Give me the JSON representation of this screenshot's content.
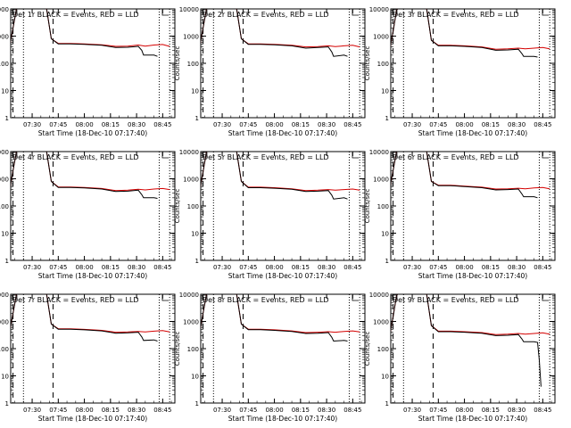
{
  "chart_data": [
    {
      "panel_title": "Det 1r BLACK = Events, RED = LLD",
      "type": "line",
      "ylog": true,
      "ylim": [
        1,
        10000
      ],
      "ylabel": "Counts/sec",
      "xlabel": "Start Time (18-Dec-10 07:17:40)",
      "x_tick_labels": [
        "07:30",
        "07:45",
        "08:00",
        "08:15",
        "08:30",
        "08:45"
      ],
      "y_tick_labels": [
        "1",
        "10",
        "100",
        "1000",
        "10000"
      ],
      "series": [
        {
          "name": "Events",
          "color": "#000000",
          "x": [
            "07:17",
            "07:19",
            "07:21",
            "07:23",
            "07:25",
            "07:38",
            "07:41",
            "07:45",
            "07:52",
            "08:00",
            "08:10",
            "08:18",
            "08:25",
            "08:31",
            "08:33",
            "08:34",
            "08:40",
            "08:42"
          ],
          "values": [
            400,
            2000,
            10000,
            13000,
            13000,
            13000,
            800,
            520,
            520,
            500,
            460,
            380,
            390,
            420,
            300,
            200,
            200,
            180
          ]
        },
        {
          "name": "LLD",
          "color": "#d40000",
          "x": [
            "07:17",
            "07:19",
            "07:21",
            "07:23",
            "07:25",
            "07:38",
            "07:41",
            "07:45",
            "07:52",
            "08:00",
            "08:10",
            "08:18",
            "08:25",
            "08:31",
            "08:35",
            "08:40",
            "08:45",
            "08:49"
          ],
          "values": [
            400,
            2000,
            10000,
            13000,
            13000,
            13000,
            800,
            540,
            540,
            520,
            480,
            420,
            430,
            470,
            430,
            470,
            490,
            420
          ]
        }
      ]
    },
    {
      "panel_title": "Det 2r BLACK = Events, RED = LLD",
      "type": "line",
      "ylog": true,
      "ylim": [
        1,
        10000
      ],
      "ylabel": "Counts/sec",
      "xlabel": "Start Time (18-Dec-10 07:17:40)",
      "x_tick_labels": [
        "07:30",
        "07:45",
        "08:00",
        "08:15",
        "08:30",
        "08:45"
      ],
      "y_tick_labels": [
        "1",
        "10",
        "100",
        "1000",
        "10000"
      ],
      "series": [
        {
          "name": "Events",
          "color": "#000000",
          "x": [
            "07:17",
            "07:19",
            "07:21",
            "07:23",
            "07:25",
            "07:38",
            "07:41",
            "07:45",
            "07:52",
            "08:00",
            "08:10",
            "08:18",
            "08:25",
            "08:31",
            "08:33",
            "08:34",
            "08:40",
            "08:42"
          ],
          "values": [
            380,
            2000,
            10000,
            13000,
            13000,
            13000,
            800,
            500,
            500,
            480,
            440,
            360,
            380,
            400,
            260,
            180,
            200,
            180
          ]
        },
        {
          "name": "LLD",
          "color": "#d40000",
          "x": [
            "07:17",
            "07:19",
            "07:21",
            "07:23",
            "07:25",
            "07:38",
            "07:41",
            "07:45",
            "07:52",
            "08:00",
            "08:10",
            "08:18",
            "08:25",
            "08:31",
            "08:35",
            "08:40",
            "08:45",
            "08:49"
          ],
          "values": [
            380,
            2000,
            10000,
            13000,
            13000,
            13000,
            800,
            520,
            520,
            500,
            460,
            400,
            410,
            440,
            410,
            440,
            460,
            400
          ]
        }
      ]
    },
    {
      "panel_title": "Det 3r BLACK = Events, RED = LLD",
      "type": "line",
      "ylog": true,
      "ylim": [
        1,
        10000
      ],
      "ylabel": "Counts/sec",
      "xlabel": "Start Time (18-Dec-10 07:17:40)",
      "x_tick_labels": [
        "07:30",
        "07:45",
        "08:00",
        "08:15",
        "08:30",
        "08:45"
      ],
      "y_tick_labels": [
        "1",
        "10",
        "100",
        "1000",
        "10000"
      ],
      "series": [
        {
          "name": "Events",
          "color": "#000000",
          "x": [
            "07:17",
            "07:19",
            "07:21",
            "07:23",
            "07:25",
            "07:38",
            "07:41",
            "07:45",
            "07:52",
            "08:00",
            "08:10",
            "08:18",
            "08:25",
            "08:31",
            "08:33",
            "08:34",
            "08:40",
            "08:42"
          ],
          "values": [
            300,
            1500,
            9000,
            13000,
            13000,
            13000,
            700,
            440,
            440,
            420,
            380,
            300,
            310,
            330,
            230,
            180,
            180,
            170
          ]
        },
        {
          "name": "LLD",
          "color": "#d40000",
          "x": [
            "07:17",
            "07:19",
            "07:21",
            "07:23",
            "07:25",
            "07:38",
            "07:41",
            "07:45",
            "07:52",
            "08:00",
            "08:10",
            "08:18",
            "08:25",
            "08:31",
            "08:35",
            "08:40",
            "08:45",
            "08:49"
          ],
          "values": [
            300,
            1500,
            9000,
            13000,
            13000,
            13000,
            700,
            460,
            460,
            440,
            400,
            330,
            340,
            360,
            340,
            360,
            380,
            340
          ]
        }
      ]
    },
    {
      "panel_title": "Det 4r BLACK = Events, RED = LLD",
      "type": "line",
      "ylog": true,
      "ylim": [
        1,
        10000
      ],
      "ylabel": "Counts/sec",
      "xlabel": "Start Time (18-Dec-10 07:17:40)",
      "x_tick_labels": [
        "07:30",
        "07:45",
        "08:00",
        "08:15",
        "08:30",
        "08:45"
      ],
      "y_tick_labels": [
        "1",
        "10",
        "100",
        "1000",
        "10000"
      ],
      "series": [
        {
          "name": "Events",
          "color": "#000000",
          "x": [
            "07:17",
            "07:19",
            "07:21",
            "07:23",
            "07:25",
            "07:38",
            "07:41",
            "07:45",
            "07:52",
            "08:00",
            "08:10",
            "08:18",
            "08:25",
            "08:31",
            "08:33",
            "08:34",
            "08:40",
            "08:42"
          ],
          "values": [
            380,
            2000,
            10000,
            13000,
            13000,
            13000,
            800,
            480,
            480,
            460,
            420,
            340,
            350,
            380,
            260,
            200,
            200,
            190
          ]
        },
        {
          "name": "LLD",
          "color": "#d40000",
          "x": [
            "07:17",
            "07:19",
            "07:21",
            "07:23",
            "07:25",
            "07:38",
            "07:41",
            "07:45",
            "07:52",
            "08:00",
            "08:10",
            "08:18",
            "08:25",
            "08:31",
            "08:35",
            "08:40",
            "08:45",
            "08:49"
          ],
          "values": [
            380,
            2000,
            10000,
            13000,
            13000,
            13000,
            800,
            500,
            500,
            480,
            440,
            370,
            380,
            410,
            390,
            420,
            440,
            400
          ]
        }
      ]
    },
    {
      "panel_title": "Det 5r BLACK = Events, RED = LLD",
      "type": "line",
      "ylog": true,
      "ylim": [
        1,
        10000
      ],
      "ylabel": "Counts/sec",
      "xlabel": "Start Time (18-Dec-10 07:17:40)",
      "x_tick_labels": [
        "07:30",
        "07:45",
        "08:00",
        "08:15",
        "08:30",
        "08:45"
      ],
      "y_tick_labels": [
        "1",
        "10",
        "100",
        "1000",
        "10000"
      ],
      "series": [
        {
          "name": "Events",
          "color": "#000000",
          "x": [
            "07:17",
            "07:19",
            "07:21",
            "07:23",
            "07:25",
            "07:38",
            "07:41",
            "07:45",
            "07:52",
            "08:00",
            "08:10",
            "08:18",
            "08:25",
            "08:31",
            "08:33",
            "08:34",
            "08:40",
            "08:42"
          ],
          "values": [
            360,
            1800,
            10000,
            13000,
            13000,
            13000,
            800,
            470,
            470,
            450,
            410,
            340,
            350,
            370,
            250,
            180,
            200,
            180
          ]
        },
        {
          "name": "LLD",
          "color": "#d40000",
          "x": [
            "07:17",
            "07:19",
            "07:21",
            "07:23",
            "07:25",
            "07:38",
            "07:41",
            "07:45",
            "07:52",
            "08:00",
            "08:10",
            "08:18",
            "08:25",
            "08:31",
            "08:35",
            "08:40",
            "08:45",
            "08:49"
          ],
          "values": [
            360,
            1800,
            10000,
            13000,
            13000,
            13000,
            800,
            490,
            490,
            470,
            430,
            370,
            380,
            400,
            380,
            400,
            420,
            380
          ]
        }
      ]
    },
    {
      "panel_title": "Det 6r BLACK = Events, RED = LLD",
      "type": "line",
      "ylog": true,
      "ylim": [
        1,
        10000
      ],
      "ylabel": "Counts/sec",
      "xlabel": "Start Time (18-Dec-10 07:17:40)",
      "x_tick_labels": [
        "07:30",
        "07:45",
        "08:00",
        "08:15",
        "08:30",
        "08:45"
      ],
      "y_tick_labels": [
        "1",
        "10",
        "100",
        "1000",
        "10000"
      ],
      "series": [
        {
          "name": "Events",
          "color": "#000000",
          "x": [
            "07:17",
            "07:19",
            "07:21",
            "07:23",
            "07:25",
            "07:38",
            "07:41",
            "07:45",
            "07:52",
            "08:00",
            "08:10",
            "08:18",
            "08:25",
            "08:31",
            "08:33",
            "08:34",
            "08:40",
            "08:42"
          ],
          "values": [
            420,
            2000,
            10000,
            13000,
            13000,
            13000,
            800,
            560,
            560,
            520,
            470,
            390,
            400,
            420,
            280,
            220,
            220,
            200
          ]
        },
        {
          "name": "LLD",
          "color": "#d40000",
          "x": [
            "07:17",
            "07:19",
            "07:21",
            "07:23",
            "07:25",
            "07:38",
            "07:41",
            "07:45",
            "07:52",
            "08:00",
            "08:10",
            "08:18",
            "08:25",
            "08:31",
            "08:35",
            "08:40",
            "08:45",
            "08:49"
          ],
          "values": [
            420,
            2000,
            10000,
            13000,
            13000,
            13000,
            800,
            580,
            580,
            540,
            490,
            420,
            430,
            450,
            430,
            460,
            480,
            430
          ]
        }
      ]
    },
    {
      "panel_title": "Det 7r BLACK = Events, RED = LLD",
      "type": "line",
      "ylog": true,
      "ylim": [
        1,
        10000
      ],
      "ylabel": "Counts/sec",
      "xlabel": "Start Time (18-Dec-10 07:17:40)",
      "x_tick_labels": [
        "07:30",
        "07:45",
        "08:00",
        "08:15",
        "08:30",
        "08:45"
      ],
      "y_tick_labels": [
        "1",
        "10",
        "100",
        "1000",
        "10000"
      ],
      "series": [
        {
          "name": "Events",
          "color": "#000000",
          "x": [
            "07:17",
            "07:19",
            "07:21",
            "07:23",
            "07:25",
            "07:38",
            "07:41",
            "07:45",
            "07:52",
            "08:00",
            "08:10",
            "08:18",
            "08:25",
            "08:31",
            "08:33",
            "08:34",
            "08:40",
            "08:42"
          ],
          "values": [
            400,
            2000,
            10000,
            13000,
            13000,
            13000,
            800,
            520,
            520,
            490,
            450,
            370,
            380,
            400,
            270,
            200,
            210,
            190
          ]
        },
        {
          "name": "LLD",
          "color": "#d40000",
          "x": [
            "07:17",
            "07:19",
            "07:21",
            "07:23",
            "07:25",
            "07:38",
            "07:41",
            "07:45",
            "07:52",
            "08:00",
            "08:10",
            "08:18",
            "08:25",
            "08:31",
            "08:35",
            "08:40",
            "08:45",
            "08:49"
          ],
          "values": [
            400,
            2000,
            10000,
            13000,
            13000,
            13000,
            800,
            540,
            540,
            510,
            470,
            400,
            410,
            430,
            410,
            440,
            460,
            410
          ]
        }
      ]
    },
    {
      "panel_title": "Det 8r BLACK = Events, RED = LLD",
      "type": "line",
      "ylog": true,
      "ylim": [
        1,
        10000
      ],
      "ylabel": "Counts/sec",
      "xlabel": "Start Time (18-Dec-10 07:17:40)",
      "x_tick_labels": [
        "07:30",
        "07:45",
        "08:00",
        "08:15",
        "08:30",
        "08:45"
      ],
      "y_tick_labels": [
        "1",
        "10",
        "100",
        "1000",
        "10000"
      ],
      "series": [
        {
          "name": "Events",
          "color": "#000000",
          "x": [
            "07:17",
            "07:19",
            "07:21",
            "07:23",
            "07:25",
            "07:38",
            "07:41",
            "07:45",
            "07:52",
            "08:00",
            "08:10",
            "08:18",
            "08:25",
            "08:31",
            "08:33",
            "08:34",
            "08:40",
            "08:42"
          ],
          "values": [
            380,
            2000,
            10000,
            13000,
            13000,
            13000,
            800,
            500,
            500,
            470,
            430,
            360,
            370,
            390,
            260,
            190,
            200,
            190
          ]
        },
        {
          "name": "LLD",
          "color": "#d40000",
          "x": [
            "07:17",
            "07:19",
            "07:21",
            "07:23",
            "07:25",
            "07:38",
            "07:41",
            "07:45",
            "07:52",
            "08:00",
            "08:10",
            "08:18",
            "08:25",
            "08:31",
            "08:35",
            "08:40",
            "08:45",
            "08:49"
          ],
          "values": [
            380,
            2000,
            10000,
            13000,
            13000,
            13000,
            800,
            520,
            520,
            490,
            450,
            390,
            400,
            420,
            400,
            430,
            450,
            410
          ]
        }
      ]
    },
    {
      "panel_title": "Det 9r BLACK = Events, RED = LLD",
      "type": "line",
      "ylog": true,
      "ylim": [
        1,
        10000
      ],
      "ylabel": "Counts/sec",
      "xlabel": "Start Time (18-Dec-10 07:17:40)",
      "x_tick_labels": [
        "07:30",
        "07:45",
        "08:00",
        "08:15",
        "08:30",
        "08:45"
      ],
      "y_tick_labels": [
        "1",
        "10",
        "100",
        "1000",
        "10000"
      ],
      "series": [
        {
          "name": "Events",
          "color": "#000000",
          "x": [
            "07:17",
            "07:19",
            "07:21",
            "07:23",
            "07:25",
            "07:38",
            "07:41",
            "07:45",
            "07:52",
            "08:00",
            "08:10",
            "08:18",
            "08:25",
            "08:31",
            "08:33",
            "08:34",
            "08:40",
            "08:42",
            "08:43",
            "08:44"
          ],
          "values": [
            300,
            1500,
            9000,
            13000,
            13000,
            13000,
            700,
            420,
            420,
            400,
            370,
            300,
            310,
            330,
            230,
            180,
            180,
            170,
            40,
            4
          ]
        },
        {
          "name": "LLD",
          "color": "#d40000",
          "x": [
            "07:17",
            "07:19",
            "07:21",
            "07:23",
            "07:25",
            "07:38",
            "07:41",
            "07:45",
            "07:52",
            "08:00",
            "08:10",
            "08:18",
            "08:25",
            "08:31",
            "08:35",
            "08:40",
            "08:45",
            "08:49"
          ],
          "values": [
            300,
            1500,
            9000,
            13000,
            13000,
            13000,
            700,
            440,
            440,
            420,
            390,
            330,
            340,
            360,
            340,
            360,
            380,
            340
          ]
        }
      ]
    }
  ]
}
